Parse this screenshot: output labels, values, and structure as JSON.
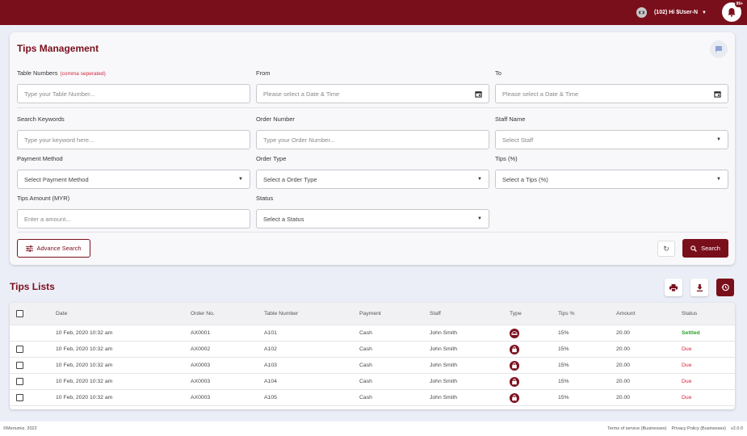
{
  "header": {
    "greeting": "(102) Hi $User-N",
    "notification_count": "99+"
  },
  "form": {
    "title": "Tips Management",
    "table_numbers": {
      "label": "Table Numbers",
      "hint": "(comma seperated)",
      "placeholder": "Type your Table Number..."
    },
    "from": {
      "label": "From",
      "placeholder": "Please select a Date & Time"
    },
    "to": {
      "label": "To",
      "placeholder": "Please select a Date & Time"
    },
    "keywords": {
      "label": "Search Keywords",
      "placeholder": "Type your keyword here..."
    },
    "order_number": {
      "label": "Order Number",
      "placeholder": "Type your Order Number..."
    },
    "staff_name": {
      "label": "Staff Name",
      "placeholder": "Select Staff"
    },
    "payment_method": {
      "label": "Payment Method",
      "placeholder": "Select Payment Method"
    },
    "order_type": {
      "label": "Order Type",
      "placeholder": "Select a Order Type"
    },
    "tips_percent": {
      "label": "Tips (%)",
      "placeholder": "Select a Tips (%)"
    },
    "tips_amount": {
      "label": "Tips Amount (MYR)",
      "placeholder": "Enter a amount..."
    },
    "status": {
      "label": "Status",
      "placeholder": "Select a Status"
    },
    "advance_search_label": "Advance Search",
    "search_label": "Search"
  },
  "list": {
    "title": "Tips Lists",
    "columns": [
      "Date",
      "Order No.",
      "Table Number",
      "Payment",
      "Staff",
      "Type",
      "Tips %",
      "Amount",
      "Status"
    ],
    "rows": [
      {
        "date": "10 Feb, 2020 10:32 am",
        "order": "AX0001",
        "table": "A101",
        "payment": "Cash",
        "staff": "John Smith",
        "type": "dine-in-icon",
        "tips": "15%",
        "amount": "20.00",
        "status": "Settled"
      },
      {
        "date": "10 Feb, 2020 10:32 am",
        "order": "AX0002",
        "table": "A102",
        "payment": "Cash",
        "staff": "John Smith",
        "type": "takeaway-bag-icon",
        "tips": "15%",
        "amount": "20.00",
        "status": "Due"
      },
      {
        "date": "10 Feb, 2020 10:32 am",
        "order": "AX0003",
        "table": "A103",
        "payment": "Cash",
        "staff": "John Smith",
        "type": "takeaway-bag-icon",
        "tips": "15%",
        "amount": "20.00",
        "status": "Due"
      },
      {
        "date": "10 Feb, 2020 10:32 am",
        "order": "AX0003",
        "table": "A104",
        "payment": "Cash",
        "staff": "John Smith",
        "type": "takeaway-bag-icon",
        "tips": "15%",
        "amount": "20.00",
        "status": "Due"
      },
      {
        "date": "10 Feb, 2020 10:32 am",
        "order": "AX0003",
        "table": "A105",
        "payment": "Cash",
        "staff": "John Smith",
        "type": "takeaway-bag-icon",
        "tips": "15%",
        "amount": "20.00",
        "status": "Due"
      }
    ]
  },
  "footer": {
    "copyright": "©Menumiz. 2022",
    "terms": "Terms of service (Businesses)",
    "privacy": "Privacy Policy (Businesses)",
    "version": "v2.0.0"
  },
  "colors": {
    "brand": "#7a0f1c",
    "settled": "#2f9e2f",
    "due": "#d2263b"
  }
}
